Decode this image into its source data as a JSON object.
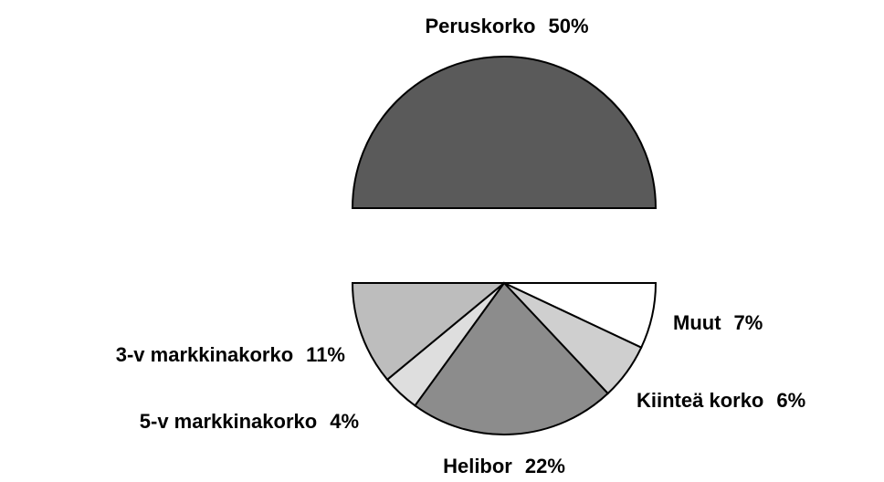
{
  "chart_data": {
    "type": "pie",
    "categories": [
      "Peruskorko",
      "Muut",
      "Kiinteä korko",
      "Helibor",
      "5-v markkinakorko",
      "3-v markkinakorko"
    ],
    "values": [
      50,
      7,
      6,
      22,
      4,
      11
    ],
    "value_labels": [
      "50%",
      "7%",
      "6%",
      "22%",
      "4%",
      "11%"
    ],
    "colors": [
      "#5a5a5a",
      "#ffffff",
      "#cfcfcf",
      "#8c8c8c",
      "#dedede",
      "#bdbdbd"
    ],
    "explode": [
      true,
      false,
      false,
      false,
      false,
      false
    ]
  }
}
